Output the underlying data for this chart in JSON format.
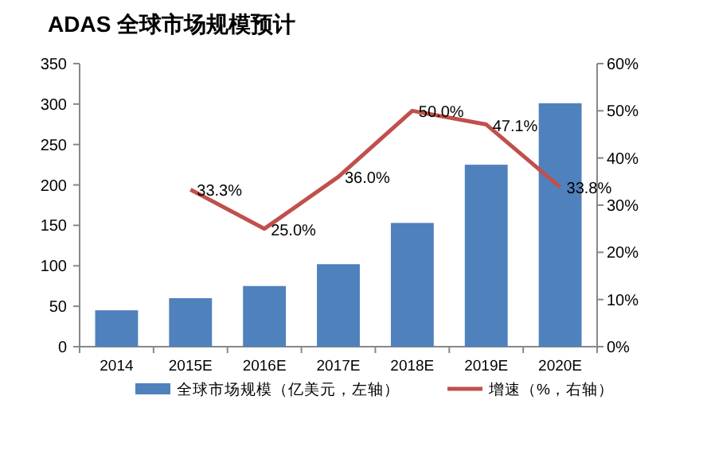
{
  "chart_data": {
    "type": "bar",
    "title": "ADAS 全球市场规模预计",
    "categories": [
      "2014",
      "2015E",
      "2016E",
      "2017E",
      "2018E",
      "2019E",
      "2020E"
    ],
    "series": [
      {
        "name": "全球市场规模（亿美元，左轴）",
        "color": "#4f81bd",
        "values": [
          45,
          60,
          75,
          102,
          153,
          225,
          301
        ]
      },
      {
        "name": "增速（%，右轴）",
        "type": "line",
        "axis": "y2",
        "color": "#c0504d",
        "values": [
          null,
          33.3,
          25.0,
          36.0,
          50.0,
          47.1,
          33.8
        ],
        "value_labels": [
          null,
          "33.3%",
          "25.0%",
          "36.0%",
          "50.0%",
          "47.1%",
          "33.8%"
        ]
      }
    ],
    "ylim": [
      0,
      350
    ],
    "yticks": [
      0,
      50,
      100,
      150,
      200,
      250,
      300,
      350
    ],
    "y2lim": [
      0,
      60
    ],
    "y2ticks": [
      {
        "value": 0,
        "label": "0%"
      },
      {
        "value": 10,
        "label": "10%"
      },
      {
        "value": 20,
        "label": "20%"
      },
      {
        "value": 30,
        "label": "30%"
      },
      {
        "value": 40,
        "label": "40%"
      },
      {
        "value": 50,
        "label": "50%"
      },
      {
        "value": 60,
        "label": "60%"
      }
    ],
    "legend": "bottom",
    "grid": false
  }
}
